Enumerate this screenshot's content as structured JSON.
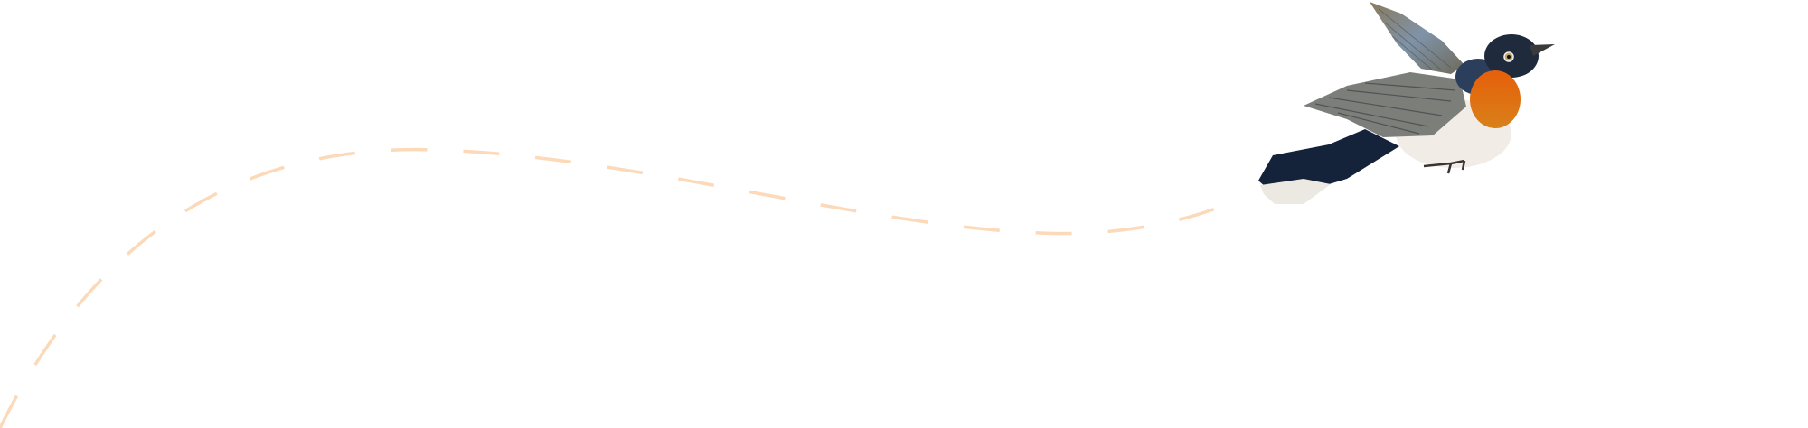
{
  "scene": {
    "background": "#ffffff",
    "flight_path": {
      "style": "dashed",
      "color": "#fcd9b8"
    },
    "bird": {
      "kind": "illustrated flying bird",
      "colors": {
        "head": "#1f2a3d",
        "throat": "#e0670f",
        "belly": "#f1ede6",
        "wing": "#7d7f7c",
        "tail": "#14223a",
        "tail_tips": "#ece9e2"
      }
    }
  }
}
